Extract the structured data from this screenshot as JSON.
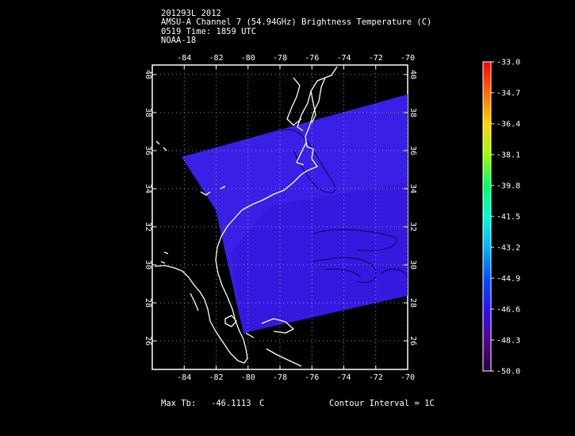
{
  "header": {
    "storm": "201293L 2012",
    "product": "AMSU-A Channel 7 (54.94GHz) Brightness Temperature (C)",
    "time": "0519 Time: 1859 UTC",
    "satellite": "NOAA-18"
  },
  "map": {
    "lon_ticks": [
      "-84",
      "-82",
      "-80",
      "-78",
      "-76",
      "-74",
      "-72",
      "-70"
    ],
    "lat_ticks": [
      "26",
      "28",
      "30",
      "32",
      "34",
      "36",
      "38",
      "40"
    ],
    "lon_range": [
      -86,
      -70
    ],
    "lat_range": [
      24.5,
      40.5
    ],
    "gridlines": true,
    "swath_color": "#3a1fe6",
    "coast_color": "#ffffff"
  },
  "colorbar": {
    "labels": [
      "-33.0",
      "-34.7",
      "-36.4",
      "-38.1",
      "-39.8",
      "-41.5",
      "-43.2",
      "-44.9",
      "-46.6",
      "-48.3",
      "-50.0"
    ],
    "colors": [
      "#ff0000",
      "#ff6a00",
      "#ffd400",
      "#9cff00",
      "#00ff66",
      "#00ffd6",
      "#00b4ff",
      "#0050ff",
      "#2a10ff",
      "#5a0090",
      "#2a0040"
    ]
  },
  "footer": {
    "max_label": "Max Tb:",
    "max_value": "-46.1113",
    "max_unit": "C",
    "contour": "Contour Interval = 1C"
  }
}
